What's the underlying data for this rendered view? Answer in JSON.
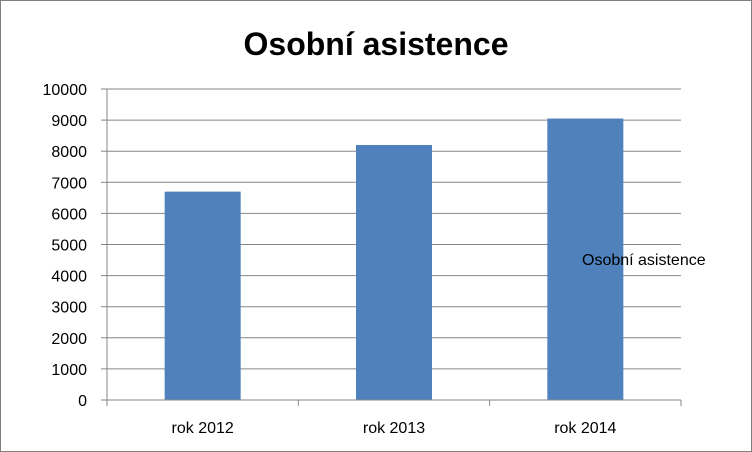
{
  "chart_data": {
    "type": "bar",
    "title": "Osobní asistence",
    "categories": [
      "rok 2012",
      "rok 2013",
      "rok 2014"
    ],
    "series": [
      {
        "name": "Osobní asistence",
        "values": [
          6700,
          8200,
          9050
        ]
      }
    ],
    "xlabel": "",
    "ylabel": "",
    "ylim": [
      0,
      10000
    ],
    "yticks": [
      0,
      1000,
      2000,
      3000,
      4000,
      5000,
      6000,
      7000,
      8000,
      9000,
      10000
    ],
    "grid": true,
    "legend_position": "right",
    "colors": {
      "bar": "#4f81bd",
      "grid": "#868686",
      "axis": "#868686"
    }
  }
}
